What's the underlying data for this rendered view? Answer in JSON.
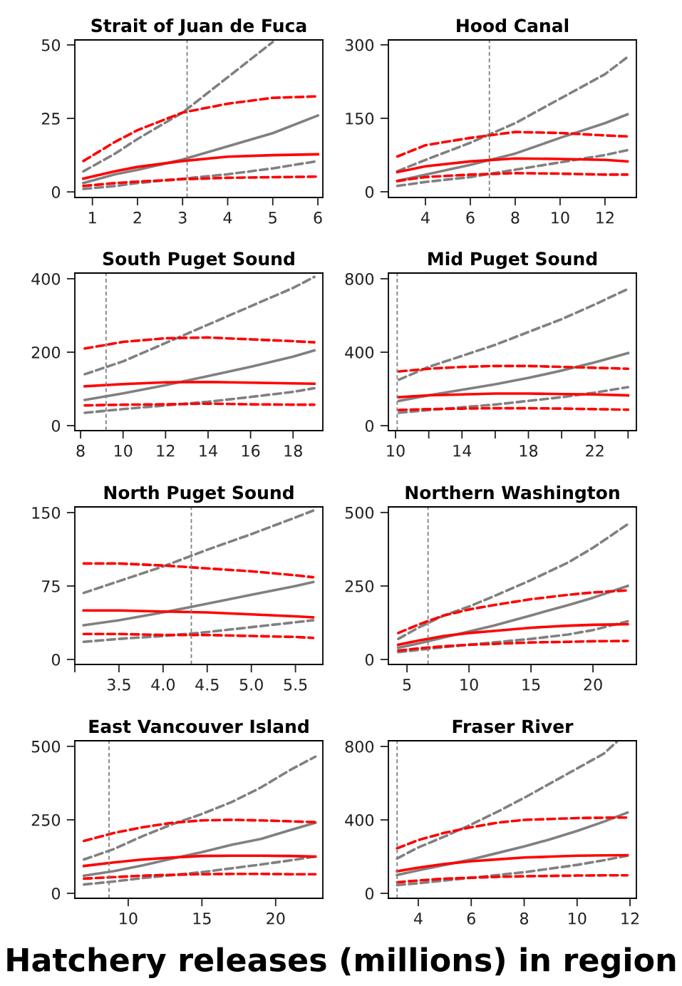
{
  "chart_data": [
    {
      "type": "line",
      "title": "Strait of Juan de Fuca",
      "xlim": [
        0.61,
        6.11
      ],
      "ylim": [
        -1.9,
        51.7
      ],
      "xticks": [
        1,
        2,
        3,
        4,
        5,
        6
      ],
      "yticks": [
        0,
        25,
        50
      ],
      "grid": false,
      "legend": false,
      "ref_lines": [
        {
          "axis": "x",
          "value": 3.1,
          "color": "#808080",
          "line_style": "dashed"
        }
      ],
      "series": [
        {
          "color": "#808080",
          "line_style": "solid",
          "x": [
            0.8,
            1.5,
            2,
            3,
            4,
            5,
            6
          ],
          "values": [
            3,
            6,
            7.5,
            11,
            15.5,
            20,
            26
          ]
        },
        {
          "color": "#808080",
          "line_style": "dashed",
          "x": [
            0.8,
            1.5,
            2,
            3,
            4,
            5
          ],
          "values": [
            7,
            13,
            18,
            27,
            39,
            51
          ]
        },
        {
          "color": "#808080",
          "line_style": "dashed",
          "x": [
            0.8,
            1.5,
            2,
            3,
            4,
            5,
            6
          ],
          "values": [
            1,
            2,
            3,
            4.5,
            6,
            8,
            10.5
          ]
        },
        {
          "color": "#ff0000",
          "line_style": "solid",
          "x": [
            0.8,
            1.5,
            2,
            3,
            4,
            5,
            6
          ],
          "values": [
            4.5,
            7,
            8.5,
            10.5,
            12,
            12.5,
            12.8
          ]
        },
        {
          "color": "#ff0000",
          "line_style": "dashed",
          "x": [
            0.8,
            1.5,
            2,
            3,
            4,
            5,
            6
          ],
          "values": [
            10.5,
            17,
            21,
            27,
            30,
            32,
            32.5
          ]
        },
        {
          "color": "#ff0000",
          "line_style": "dashed",
          "x": [
            0.8,
            1.5,
            2,
            3,
            4,
            5,
            6
          ],
          "values": [
            2,
            3,
            3.5,
            4.3,
            4.8,
            5,
            5.2
          ]
        }
      ]
    },
    {
      "type": "line",
      "title": "Hood Canal",
      "xlim": [
        2.35,
        13.4
      ],
      "ylim": [
        -11.7,
        310
      ],
      "xticks": [
        4,
        6,
        8,
        10,
        12
      ],
      "yticks": [
        0,
        150,
        300
      ],
      "grid": false,
      "legend": false,
      "ref_lines": [
        {
          "axis": "x",
          "value": 6.85,
          "color": "#808080",
          "line_style": "dashed"
        }
      ],
      "series": [
        {
          "color": "#808080",
          "line_style": "solid",
          "x": [
            2.75,
            4,
            6,
            8,
            10,
            12,
            13
          ],
          "values": [
            22,
            35,
            55,
            78,
            110,
            140,
            158
          ]
        },
        {
          "color": "#808080",
          "line_style": "dashed",
          "x": [
            2.75,
            4,
            6,
            8,
            10,
            12,
            13
          ],
          "values": [
            42,
            65,
            100,
            140,
            190,
            240,
            275
          ]
        },
        {
          "color": "#808080",
          "line_style": "dashed",
          "x": [
            2.75,
            4,
            6,
            8,
            10,
            12,
            13
          ],
          "values": [
            12,
            20,
            30,
            45,
            60,
            75,
            85
          ]
        },
        {
          "color": "#ff0000",
          "line_style": "solid",
          "x": [
            2.75,
            4,
            6,
            8,
            10,
            12,
            13
          ],
          "values": [
            40,
            52,
            62,
            68,
            67,
            65,
            62
          ]
        },
        {
          "color": "#ff0000",
          "line_style": "dashed",
          "x": [
            2.75,
            4,
            6,
            8,
            10,
            12,
            13
          ],
          "values": [
            72,
            95,
            110,
            122,
            120,
            115,
            113
          ]
        },
        {
          "color": "#ff0000",
          "line_style": "dashed",
          "x": [
            2.75,
            4,
            6,
            8,
            10,
            12,
            13
          ],
          "values": [
            22,
            30,
            35,
            38,
            37,
            35,
            35
          ]
        }
      ]
    },
    {
      "type": "line",
      "title": "South Puget Sound",
      "xlim": [
        7.73,
        19.4
      ],
      "ylim": [
        -13.6,
        415.5
      ],
      "xticks": [
        8,
        10,
        12,
        14,
        16,
        18
      ],
      "yticks": [
        0,
        200,
        400
      ],
      "grid": false,
      "legend": false,
      "ref_lines": [
        {
          "axis": "x",
          "value": 9.2,
          "color": "#808080",
          "line_style": "dashed"
        }
      ],
      "series": [
        {
          "color": "#808080",
          "line_style": "solid",
          "x": [
            8.2,
            10,
            12,
            14,
            16,
            18,
            19
          ],
          "values": [
            70,
            88,
            110,
            135,
            160,
            188,
            205
          ]
        },
        {
          "color": "#808080",
          "line_style": "dashed",
          "x": [
            8.2,
            10,
            12,
            14,
            16,
            18,
            19
          ],
          "values": [
            140,
            175,
            225,
            275,
            325,
            375,
            405
          ]
        },
        {
          "color": "#808080",
          "line_style": "dashed",
          "x": [
            8.2,
            10,
            12,
            14,
            16,
            18,
            19
          ],
          "values": [
            35,
            45,
            55,
            65,
            78,
            92,
            102
          ]
        },
        {
          "color": "#ff0000",
          "line_style": "solid",
          "x": [
            8.2,
            10,
            12,
            14,
            16,
            18,
            19
          ],
          "values": [
            107,
            113,
            118,
            119,
            117,
            115,
            114
          ]
        },
        {
          "color": "#ff0000",
          "line_style": "dashed",
          "x": [
            8.2,
            10,
            12,
            14,
            16,
            18,
            19
          ],
          "values": [
            210,
            228,
            238,
            240,
            235,
            230,
            227
          ]
        },
        {
          "color": "#ff0000",
          "line_style": "dashed",
          "x": [
            8.2,
            10,
            12,
            14,
            16,
            18,
            19
          ],
          "values": [
            55,
            57,
            58,
            60,
            58,
            57,
            57
          ]
        }
      ]
    },
    {
      "type": "line",
      "title": "Mid Puget Sound",
      "xlim": [
        9.57,
        24.5
      ],
      "ylim": [
        -27,
        831
      ],
      "xticks": [
        10,
        {
          "value": 12,
          "label": null
        },
        14,
        {
          "value": 16,
          "label": null
        },
        18,
        {
          "value": 20,
          "label": null
        },
        22,
        {
          "value": 24,
          "label": null
        }
      ],
      "yticks": [
        0,
        400,
        800
      ],
      "grid": false,
      "legend": false,
      "ref_lines": [
        {
          "axis": "x",
          "value": 10.1,
          "color": "#808080",
          "line_style": "dashed"
        }
      ],
      "series": [
        {
          "color": "#808080",
          "line_style": "solid",
          "x": [
            10.2,
            12,
            14,
            16,
            18,
            20,
            22,
            24
          ],
          "values": [
            135,
            165,
            195,
            225,
            260,
            300,
            345,
            395
          ]
        },
        {
          "color": "#808080",
          "line_style": "dashed",
          "x": [
            10.2,
            12,
            14,
            16,
            18,
            20,
            22,
            24
          ],
          "values": [
            250,
            320,
            380,
            440,
            510,
            580,
            660,
            745
          ]
        },
        {
          "color": "#808080",
          "line_style": "dashed",
          "x": [
            10.2,
            12,
            14,
            16,
            18,
            20,
            22,
            24
          ],
          "values": [
            70,
            85,
            100,
            115,
            135,
            155,
            180,
            210
          ]
        },
        {
          "color": "#ff0000",
          "line_style": "solid",
          "x": [
            10.2,
            12,
            14,
            16,
            18,
            20,
            22,
            24
          ],
          "values": [
            155,
            165,
            170,
            175,
            175,
            172,
            170,
            165
          ]
        },
        {
          "color": "#ff0000",
          "line_style": "dashed",
          "x": [
            10.2,
            12,
            14,
            16,
            18,
            20,
            22,
            24
          ],
          "values": [
            295,
            310,
            320,
            325,
            325,
            320,
            315,
            310
          ]
        },
        {
          "color": "#ff0000",
          "line_style": "dashed",
          "x": [
            10.2,
            12,
            14,
            16,
            18,
            20,
            22,
            24
          ],
          "values": [
            85,
            90,
            93,
            95,
            95,
            93,
            90,
            87
          ]
        }
      ]
    },
    {
      "type": "line",
      "title": "North Puget Sound",
      "xlim": [
        3.0,
        5.81
      ],
      "ylim": [
        -5.1,
        155.8
      ],
      "xticks": [
        {
          "value": 3.0,
          "label": null
        },
        {
          "value": 3.5,
          "label": "3.5"
        },
        {
          "value": 4.0,
          "label": "4.0"
        },
        {
          "value": 4.5,
          "label": "4.5"
        },
        {
          "value": 5.0,
          "label": "5.0"
        },
        {
          "value": 5.5,
          "label": "5.5"
        }
      ],
      "yticks": [
        0,
        75,
        150
      ],
      "grid": false,
      "legend": false,
      "ref_lines": [
        {
          "axis": "x",
          "value": 4.32,
          "color": "#808080",
          "line_style": "dashed"
        }
      ],
      "series": [
        {
          "color": "#808080",
          "line_style": "solid",
          "x": [
            3.1,
            3.5,
            4.0,
            4.5,
            5.0,
            5.5,
            5.7
          ],
          "values": [
            35,
            40,
            48,
            57,
            66,
            75,
            79
          ]
        },
        {
          "color": "#808080",
          "line_style": "dashed",
          "x": [
            3.1,
            3.5,
            4.0,
            4.5,
            5.0,
            5.5,
            5.7
          ],
          "values": [
            68,
            80,
            95,
            112,
            128,
            145,
            152
          ]
        },
        {
          "color": "#808080",
          "line_style": "dashed",
          "x": [
            3.1,
            3.5,
            4.0,
            4.5,
            5.0,
            5.5,
            5.7
          ],
          "values": [
            18,
            21,
            24,
            28,
            33,
            38,
            40
          ]
        },
        {
          "color": "#ff0000",
          "line_style": "solid",
          "x": [
            3.1,
            3.5,
            4.0,
            4.5,
            5.0,
            5.5,
            5.7
          ],
          "values": [
            50,
            50,
            49,
            48,
            46,
            44,
            43
          ]
        },
        {
          "color": "#ff0000",
          "line_style": "dashed",
          "x": [
            3.1,
            3.5,
            4.0,
            4.5,
            5.0,
            5.5,
            5.7
          ],
          "values": [
            98,
            98,
            96,
            93,
            90,
            86,
            84
          ]
        },
        {
          "color": "#ff0000",
          "line_style": "dashed",
          "x": [
            3.1,
            3.5,
            4.0,
            4.5,
            5.0,
            5.5,
            5.7
          ],
          "values": [
            26,
            26,
            25,
            25,
            24,
            23,
            22
          ]
        }
      ]
    },
    {
      "type": "line",
      "title": "Northern Washington",
      "xlim": [
        3.5,
        23.5
      ],
      "ylim": [
        -17,
        519
      ],
      "xticks": [
        5,
        10,
        15,
        20
      ],
      "yticks": [
        0,
        250,
        500
      ],
      "grid": false,
      "legend": false,
      "ref_lines": [
        {
          "axis": "x",
          "value": 6.7,
          "color": "#808080",
          "line_style": "dashed"
        }
      ],
      "series": [
        {
          "color": "#808080",
          "line_style": "solid",
          "x": [
            4.3,
            6,
            8,
            10,
            12,
            15,
            18,
            20,
            22.8
          ],
          "values": [
            40,
            55,
            75,
            95,
            115,
            150,
            185,
            210,
            250
          ]
        },
        {
          "color": "#808080",
          "line_style": "dashed",
          "x": [
            4.3,
            6,
            8,
            10,
            12,
            15,
            18,
            20,
            22.8
          ],
          "values": [
            70,
            110,
            150,
            180,
            215,
            270,
            330,
            380,
            460
          ]
        },
        {
          "color": "#808080",
          "line_style": "dashed",
          "x": [
            4.3,
            6,
            8,
            10,
            12,
            15,
            18,
            20,
            22.8
          ],
          "values": [
            25,
            33,
            42,
            50,
            58,
            70,
            85,
            100,
            130
          ]
        },
        {
          "color": "#ff0000",
          "line_style": "solid",
          "x": [
            4.3,
            6,
            8,
            10,
            12,
            15,
            18,
            20,
            22.8
          ],
          "values": [
            50,
            65,
            80,
            90,
            97,
            108,
            115,
            118,
            120
          ]
        },
        {
          "color": "#ff0000",
          "line_style": "dashed",
          "x": [
            4.3,
            6,
            8,
            10,
            12,
            15,
            18,
            20,
            22.8
          ],
          "values": [
            90,
            120,
            150,
            170,
            185,
            205,
            220,
            228,
            235
          ]
        },
        {
          "color": "#ff0000",
          "line_style": "dashed",
          "x": [
            4.3,
            6,
            8,
            10,
            12,
            15,
            18,
            20,
            22.8
          ],
          "values": [
            30,
            38,
            45,
            50,
            53,
            58,
            60,
            62,
            63
          ]
        }
      ]
    },
    {
      "type": "line",
      "title": "East Vancouver Island",
      "xlim": [
        6.38,
        23.2
      ],
      "ylim": [
        -17,
        519
      ],
      "xticks": [
        10,
        15,
        20
      ],
      "yticks": [
        0,
        250,
        500
      ],
      "grid": false,
      "legend": false,
      "ref_lines": [
        {
          "axis": "x",
          "value": 8.7,
          "color": "#808080",
          "line_style": "dashed"
        }
      ],
      "series": [
        {
          "color": "#808080",
          "line_style": "solid",
          "x": [
            7,
            9,
            11,
            13,
            15,
            17,
            19,
            21,
            22.7
          ],
          "values": [
            60,
            75,
            95,
            118,
            140,
            165,
            185,
            215,
            240
          ]
        },
        {
          "color": "#808080",
          "line_style": "dashed",
          "x": [
            7,
            9,
            11,
            13,
            15,
            17,
            19,
            21,
            22.7
          ],
          "values": [
            115,
            150,
            195,
            235,
            270,
            310,
            360,
            420,
            465
          ]
        },
        {
          "color": "#808080",
          "line_style": "dashed",
          "x": [
            7,
            9,
            11,
            13,
            15,
            17,
            19,
            21,
            22.7
          ],
          "values": [
            30,
            40,
            52,
            62,
            72,
            85,
            98,
            112,
            125
          ]
        },
        {
          "color": "#ff0000",
          "line_style": "solid",
          "x": [
            7,
            9,
            11,
            13,
            15,
            17,
            19,
            21,
            22.7
          ],
          "values": [
            93,
            105,
            115,
            122,
            127,
            128,
            128,
            127,
            125
          ]
        },
        {
          "color": "#ff0000",
          "line_style": "dashed",
          "x": [
            7,
            9,
            11,
            13,
            15,
            17,
            19,
            21,
            22.7
          ],
          "values": [
            178,
            205,
            225,
            240,
            248,
            250,
            248,
            245,
            242
          ]
        },
        {
          "color": "#ff0000",
          "line_style": "dashed",
          "x": [
            7,
            9,
            11,
            13,
            15,
            17,
            19,
            21,
            22.7
          ],
          "values": [
            50,
            55,
            60,
            63,
            65,
            66,
            66,
            65,
            65
          ]
        }
      ]
    },
    {
      "type": "line",
      "title": "Fraser River",
      "xlim": [
        2.87,
        12.24
      ],
      "ylim": [
        -27,
        831
      ],
      "xticks": [
        4,
        6,
        8,
        10,
        12
      ],
      "yticks": [
        0,
        400,
        800
      ],
      "grid": false,
      "legend": false,
      "ref_lines": [
        {
          "axis": "x",
          "value": 3.2,
          "color": "#808080",
          "line_style": "dashed"
        }
      ],
      "annotations": [
        "Hatchery releases (millions) in region"
      ],
      "series": [
        {
          "color": "#808080",
          "line_style": "solid",
          "x": [
            3.2,
            4,
            5,
            6,
            7,
            8,
            9,
            10,
            11,
            11.9
          ],
          "values": [
            100,
            125,
            155,
            185,
            220,
            255,
            295,
            340,
            390,
            440
          ]
        },
        {
          "color": "#808080",
          "line_style": "dashed",
          "x": [
            3.2,
            4,
            5,
            6,
            7,
            8,
            9,
            10,
            11,
            11.5
          ],
          "values": [
            190,
            250,
            310,
            375,
            445,
            520,
            600,
            680,
            760,
            825
          ]
        },
        {
          "color": "#808080",
          "line_style": "dashed",
          "x": [
            3.2,
            4,
            5,
            6,
            7,
            8,
            9,
            10,
            11,
            11.9
          ],
          "values": [
            45,
            55,
            70,
            85,
            100,
            115,
            135,
            155,
            180,
            205
          ]
        },
        {
          "color": "#ff0000",
          "line_style": "solid",
          "x": [
            3.2,
            4,
            5,
            6,
            7,
            8,
            9,
            10,
            11,
            11.9
          ],
          "values": [
            120,
            140,
            160,
            175,
            185,
            195,
            200,
            205,
            207,
            208
          ]
        },
        {
          "color": "#ff0000",
          "line_style": "dashed",
          "x": [
            3.2,
            4,
            5,
            6,
            7,
            8,
            9,
            10,
            11,
            11.9
          ],
          "values": [
            245,
            290,
            330,
            360,
            385,
            400,
            405,
            410,
            412,
            413
          ]
        },
        {
          "color": "#ff0000",
          "line_style": "dashed",
          "x": [
            3.2,
            4,
            5,
            6,
            7,
            8,
            9,
            10,
            11,
            11.9
          ],
          "values": [
            60,
            70,
            80,
            85,
            90,
            93,
            95,
            97,
            98,
            98
          ]
        }
      ]
    }
  ]
}
